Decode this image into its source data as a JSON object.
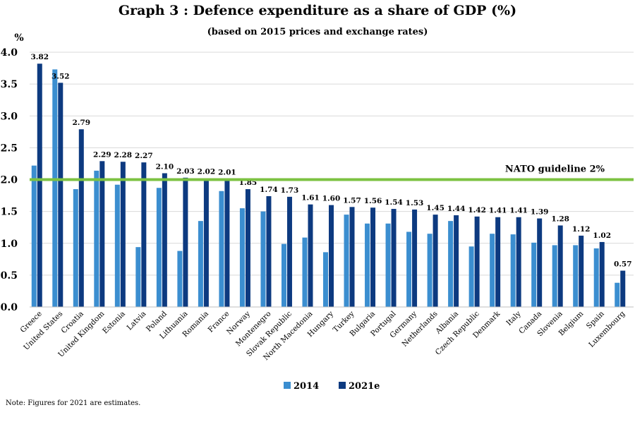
{
  "chart_data": {
    "type": "bar",
    "title": "Graph 3 : Defence expenditure as a share of GDP (%)",
    "subtitle": "(based on 2015 prices and exchange rates)",
    "ylabel": "%",
    "ylim": [
      0,
      4.0
    ],
    "yticks": [
      "0.0",
      "0.5",
      "1.0",
      "1.5",
      "2.0",
      "2.5",
      "3.0",
      "3.5",
      "4.0"
    ],
    "categories": [
      "Greece",
      "United States",
      "Croatia",
      "United Kingdom",
      "Estonia",
      "Latvia",
      "Poland",
      "Lithuania",
      "Romania",
      "France",
      "Norway",
      "Montenegro",
      "Slovak Republic",
      "North Macedonia",
      "Hungary",
      "Turkey",
      "Bulgaria",
      "Portugal",
      "Germany",
      "Netherlands",
      "Albania",
      "Czech Republic",
      "Denmark",
      "Italy",
      "Canada",
      "Slovenia",
      "Belgium",
      "Spain",
      "Luxembourg"
    ],
    "series": [
      {
        "name": "2014",
        "color": "#3b8ed0",
        "values": [
          2.22,
          3.73,
          1.85,
          2.14,
          1.92,
          0.94,
          1.87,
          0.88,
          1.35,
          1.82,
          1.55,
          1.5,
          0.99,
          1.09,
          0.86,
          1.45,
          1.31,
          1.31,
          1.18,
          1.15,
          1.35,
          0.95,
          1.15,
          1.14,
          1.01,
          0.97,
          0.97,
          0.92,
          0.38
        ]
      },
      {
        "name": "2021e",
        "color": "#0d3a80",
        "values": [
          3.82,
          3.52,
          2.79,
          2.29,
          2.28,
          2.27,
          2.1,
          2.03,
          2.02,
          2.01,
          1.85,
          1.74,
          1.73,
          1.61,
          1.6,
          1.57,
          1.56,
          1.54,
          1.53,
          1.45,
          1.44,
          1.42,
          1.41,
          1.41,
          1.39,
          1.28,
          1.12,
          1.02,
          0.57
        ],
        "labels": [
          "3.82",
          "3.52",
          "2.79",
          "2.29",
          "2.28",
          "2.27",
          "2.10",
          "2.03",
          "2.02",
          "2.01",
          "1.85",
          "1.74",
          "1.73",
          "1.61",
          "1.60",
          "1.57",
          "1.56",
          "1.54",
          "1.53",
          "1.45",
          "1.44",
          "1.42",
          "1.41",
          "1.41",
          "1.39",
          "1.28",
          "1.12",
          "1.02",
          "0.57"
        ]
      }
    ],
    "reference_line": {
      "value": 2.0,
      "label": "NATO guideline 2%",
      "color": "#7cc242"
    },
    "grid": true,
    "legend_position": "bottom-center",
    "note": "Note: Figures for 2021 are estimates."
  }
}
